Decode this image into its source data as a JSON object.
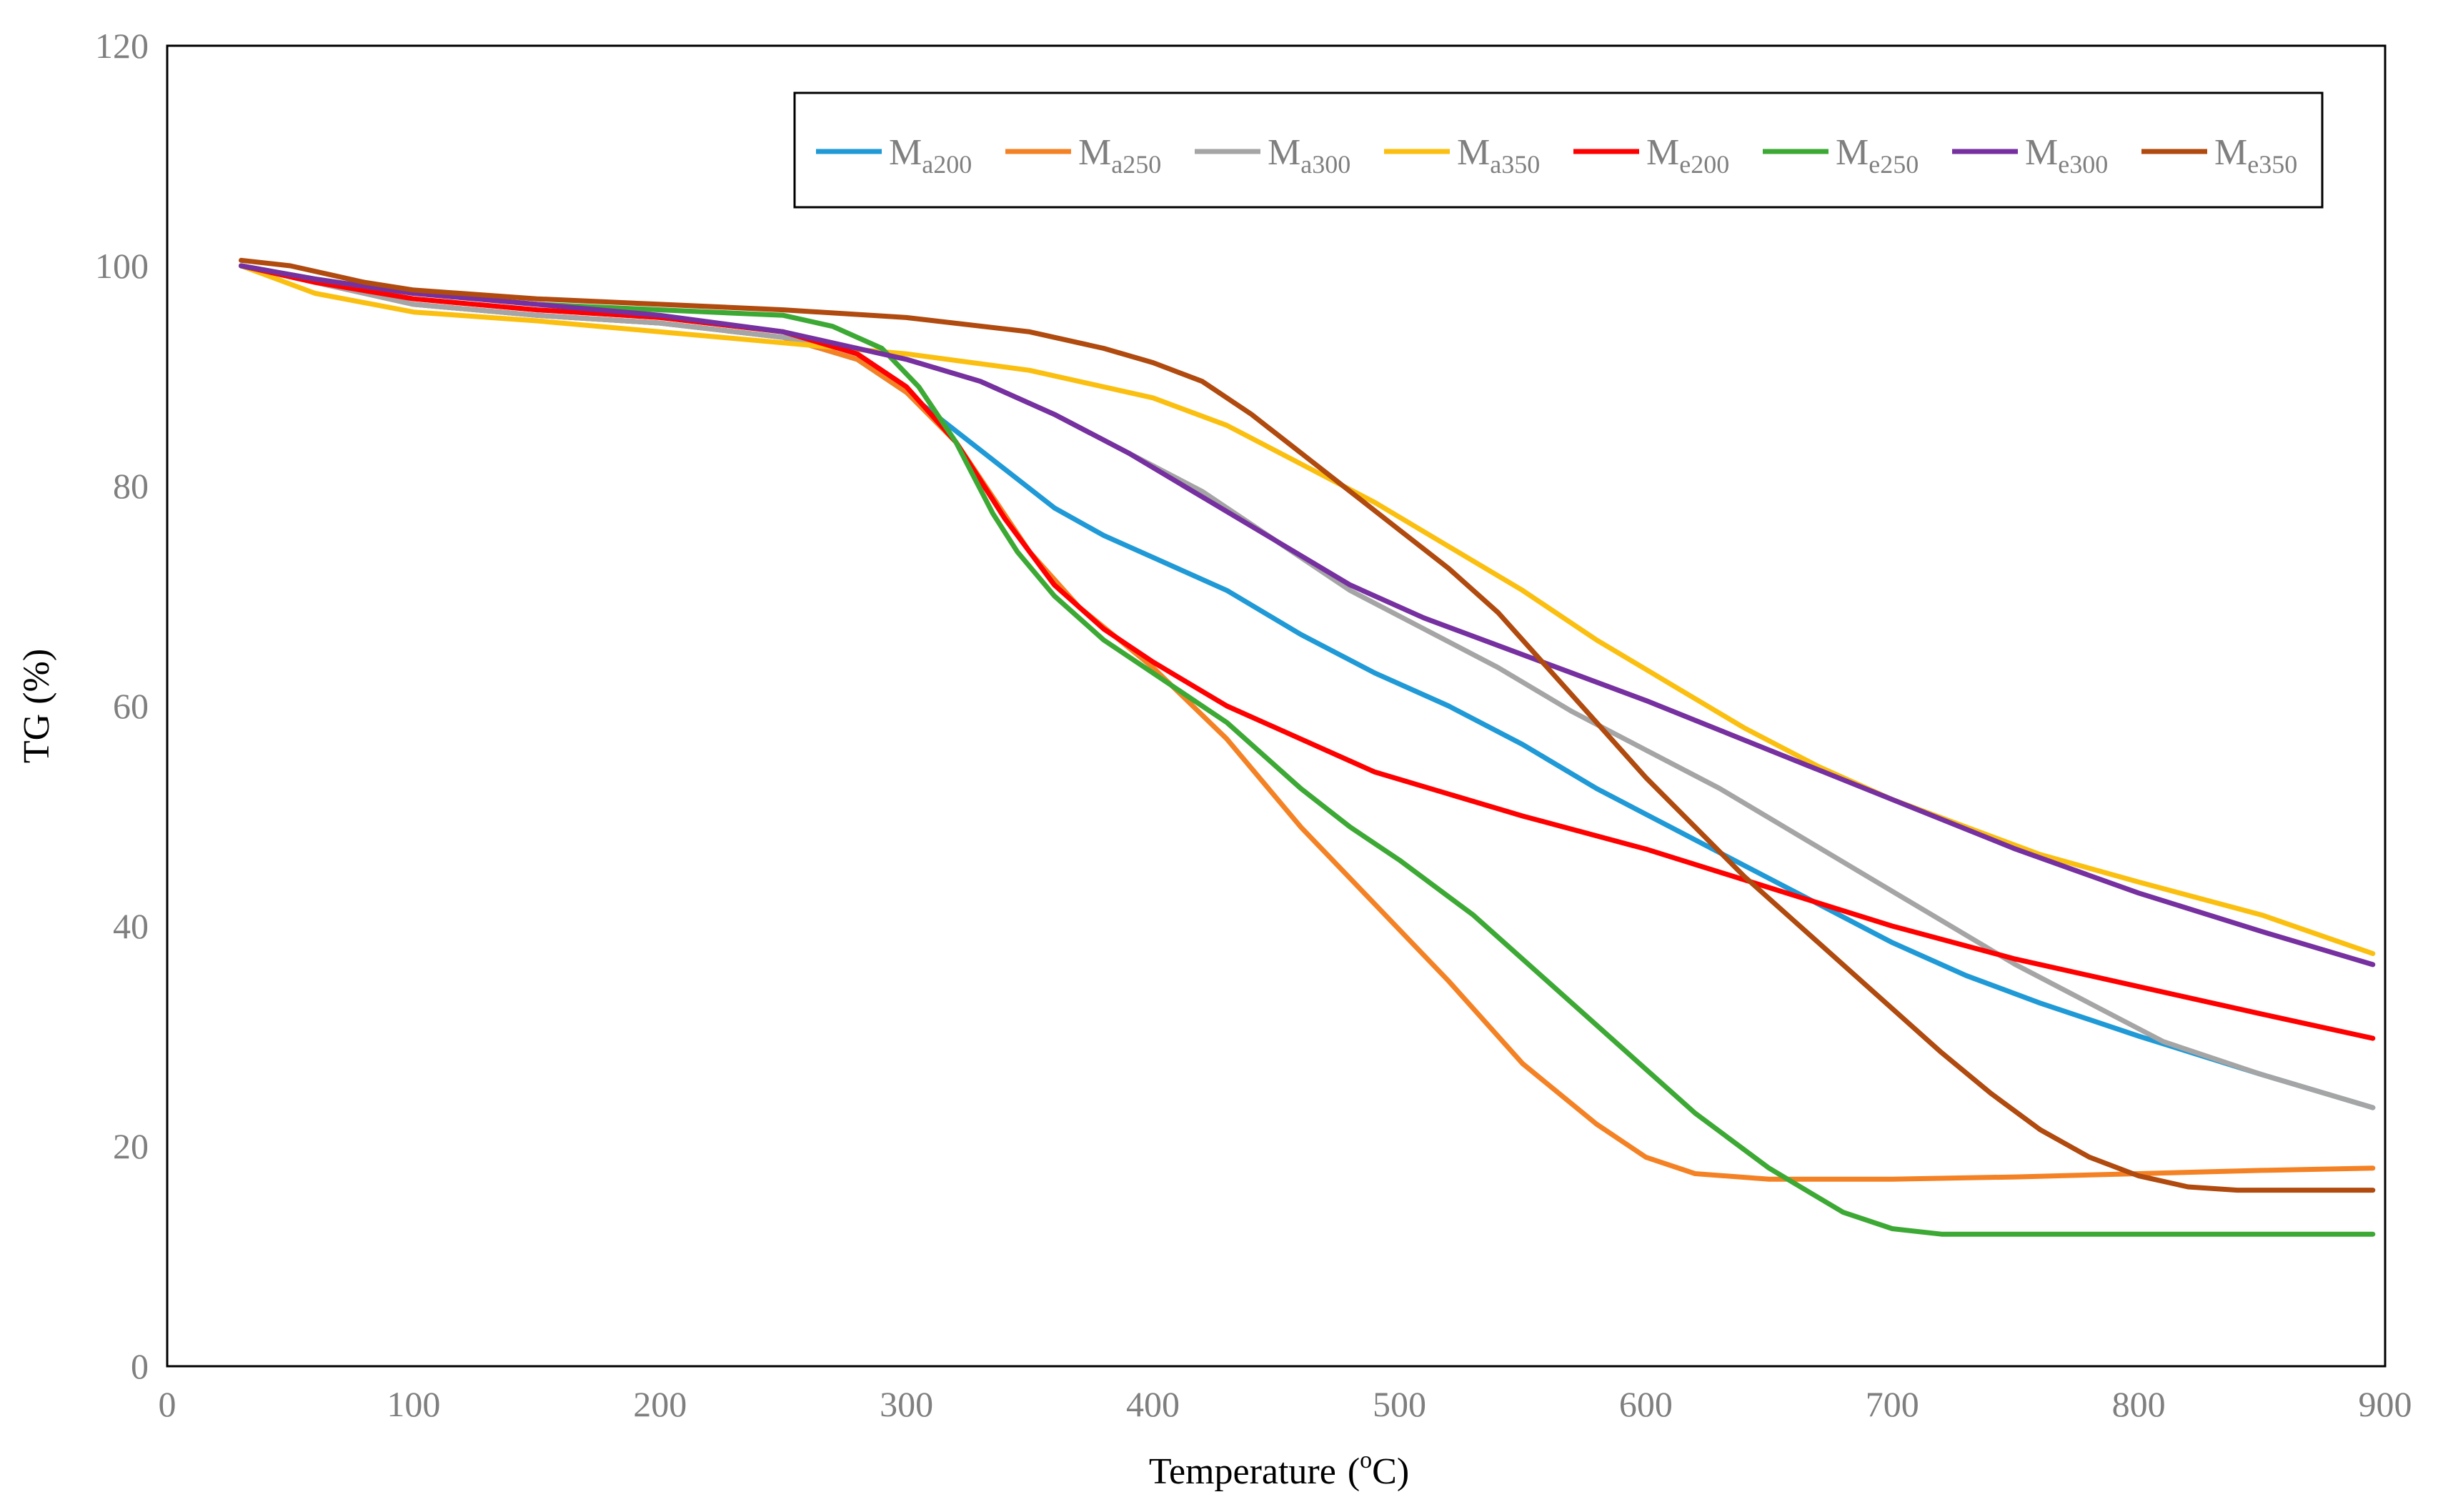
{
  "chart_data": {
    "type": "line",
    "title": "",
    "xlabel": "Temperature",
    "xlabel_unit_sup": "o",
    "xlabel_unit": "C",
    "ylabel": "TG (%)",
    "xlim": [
      0,
      900
    ],
    "ylim": [
      0,
      120
    ],
    "xticks": [
      0,
      100,
      200,
      300,
      400,
      500,
      600,
      700,
      800,
      900
    ],
    "yticks": [
      0,
      20,
      40,
      60,
      80,
      100,
      120
    ],
    "grid": false,
    "legend_position": "top-right",
    "series": [
      {
        "name": "Ma200",
        "base": "M",
        "sub": "a200",
        "color": "#1f9ad6",
        "x": [
          30,
          60,
          100,
          150,
          200,
          250,
          280,
          300,
          320,
          340,
          360,
          380,
          400,
          430,
          460,
          490,
          520,
          550,
          580,
          610,
          640,
          670,
          700,
          730,
          760,
          800,
          850,
          880,
          895
        ],
        "y": [
          100,
          98.5,
          96.5,
          95.5,
          94.8,
          93.5,
          91.5,
          88.5,
          85,
          81.5,
          78,
          75.5,
          73.5,
          70.5,
          66.5,
          63,
          60,
          56.5,
          52.5,
          49,
          45.5,
          42,
          38.5,
          35.5,
          33,
          30,
          26.5,
          24.5,
          23.5
        ]
      },
      {
        "name": "Ma250",
        "base": "M",
        "sub": "a250",
        "color": "#f48225",
        "x": [
          30,
          60,
          100,
          150,
          200,
          250,
          280,
          300,
          320,
          335,
          350,
          370,
          400,
          430,
          460,
          490,
          520,
          550,
          580,
          600,
          620,
          650,
          700,
          750,
          800,
          850,
          895
        ],
        "y": [
          100,
          98.5,
          96.5,
          95.5,
          94.8,
          93.5,
          91.5,
          88.5,
          84,
          79,
          74,
          69,
          63.5,
          57,
          49,
          42,
          35,
          27.5,
          22,
          19,
          17.5,
          17,
          17,
          17.2,
          17.5,
          17.8,
          18
        ]
      },
      {
        "name": "Ma300",
        "base": "M",
        "sub": "a300",
        "color": "#a5a5a5",
        "x": [
          30,
          60,
          100,
          150,
          200,
          250,
          280,
          300,
          330,
          360,
          390,
          420,
          450,
          480,
          510,
          540,
          570,
          600,
          630,
          660,
          690,
          720,
          750,
          780,
          810,
          850,
          895
        ],
        "y": [
          100,
          98.5,
          96.5,
          95.5,
          94.8,
          93.5,
          92.5,
          91.5,
          89.5,
          86.5,
          83,
          79.5,
          75,
          70.5,
          67,
          63.5,
          59.5,
          56,
          52.5,
          48.5,
          44.5,
          40.5,
          36.5,
          33,
          29.5,
          26.5,
          23.5
        ]
      },
      {
        "name": "Ma350",
        "base": "M",
        "sub": "a350",
        "color": "#fbbf10",
        "x": [
          30,
          60,
          100,
          150,
          200,
          250,
          300,
          350,
          400,
          430,
          460,
          490,
          520,
          550,
          580,
          610,
          640,
          670,
          700,
          730,
          760,
          800,
          850,
          895
        ],
        "y": [
          100,
          97.5,
          95.8,
          95,
          94,
          93,
          92,
          90.5,
          88,
          85.5,
          82,
          78.5,
          74.5,
          70.5,
          66,
          62,
          58,
          54.5,
          51.5,
          49,
          46.5,
          44,
          41,
          37.5
        ]
      },
      {
        "name": "Me200",
        "base": "M",
        "sub": "e200",
        "color": "#ff0000",
        "x": [
          30,
          60,
          100,
          150,
          200,
          250,
          280,
          300,
          320,
          340,
          360,
          380,
          400,
          430,
          460,
          490,
          520,
          550,
          600,
          650,
          700,
          750,
          800,
          850,
          895
        ],
        "y": [
          100,
          98.5,
          97,
          96,
          95.3,
          94,
          92,
          89,
          84,
          77,
          71,
          67,
          64,
          60,
          57,
          54,
          52,
          50,
          47,
          43.5,
          40,
          37,
          34.5,
          32,
          29.8
        ]
      },
      {
        "name": "Me250",
        "base": "M",
        "sub": "e250",
        "color": "#3da935",
        "x": [
          30,
          60,
          100,
          150,
          200,
          250,
          270,
          290,
          305,
          320,
          335,
          345,
          360,
          380,
          400,
          430,
          460,
          480,
          500,
          530,
          560,
          590,
          620,
          650,
          680,
          700,
          720,
          760,
          800,
          850,
          895
        ],
        "y": [
          100,
          98.8,
          97.5,
          96.5,
          96,
          95.5,
          94.5,
          92.5,
          89,
          84,
          77.5,
          74,
          70,
          66,
          63,
          58.5,
          52.5,
          49,
          46,
          41,
          35,
          29,
          23,
          18,
          14,
          12.5,
          12,
          12,
          12,
          12,
          12
        ]
      },
      {
        "name": "Me300",
        "base": "M",
        "sub": "e300",
        "color": "#7630a0",
        "x": [
          30,
          60,
          100,
          150,
          200,
          250,
          280,
          300,
          330,
          360,
          390,
          420,
          450,
          480,
          510,
          540,
          570,
          600,
          650,
          700,
          750,
          800,
          850,
          895
        ],
        "y": [
          100,
          98.8,
          97.5,
          96.5,
          95.5,
          94,
          92.5,
          91.5,
          89.5,
          86.5,
          83,
          79,
          75,
          71,
          68,
          65.5,
          63,
          60.5,
          56,
          51.5,
          47,
          43,
          39.5,
          36.5
        ]
      },
      {
        "name": "Me350",
        "base": "M",
        "sub": "e350",
        "color": "#b04a0e",
        "x": [
          30,
          50,
          80,
          100,
          150,
          200,
          250,
          300,
          350,
          380,
          400,
          420,
          440,
          460,
          480,
          500,
          520,
          540,
          560,
          580,
          600,
          620,
          640,
          660,
          680,
          700,
          720,
          740,
          760,
          780,
          800,
          820,
          840,
          860,
          895
        ],
        "y": [
          100.5,
          100,
          98.5,
          97.8,
          97,
          96.5,
          96,
          95.3,
          94,
          92.5,
          91.2,
          89.5,
          86.5,
          83,
          79.5,
          76,
          72.5,
          68.5,
          63.5,
          58.5,
          53.5,
          49,
          44.5,
          40.5,
          36.5,
          32.5,
          28.5,
          24.8,
          21.5,
          19,
          17.3,
          16.3,
          16,
          16,
          16
        ]
      }
    ]
  }
}
